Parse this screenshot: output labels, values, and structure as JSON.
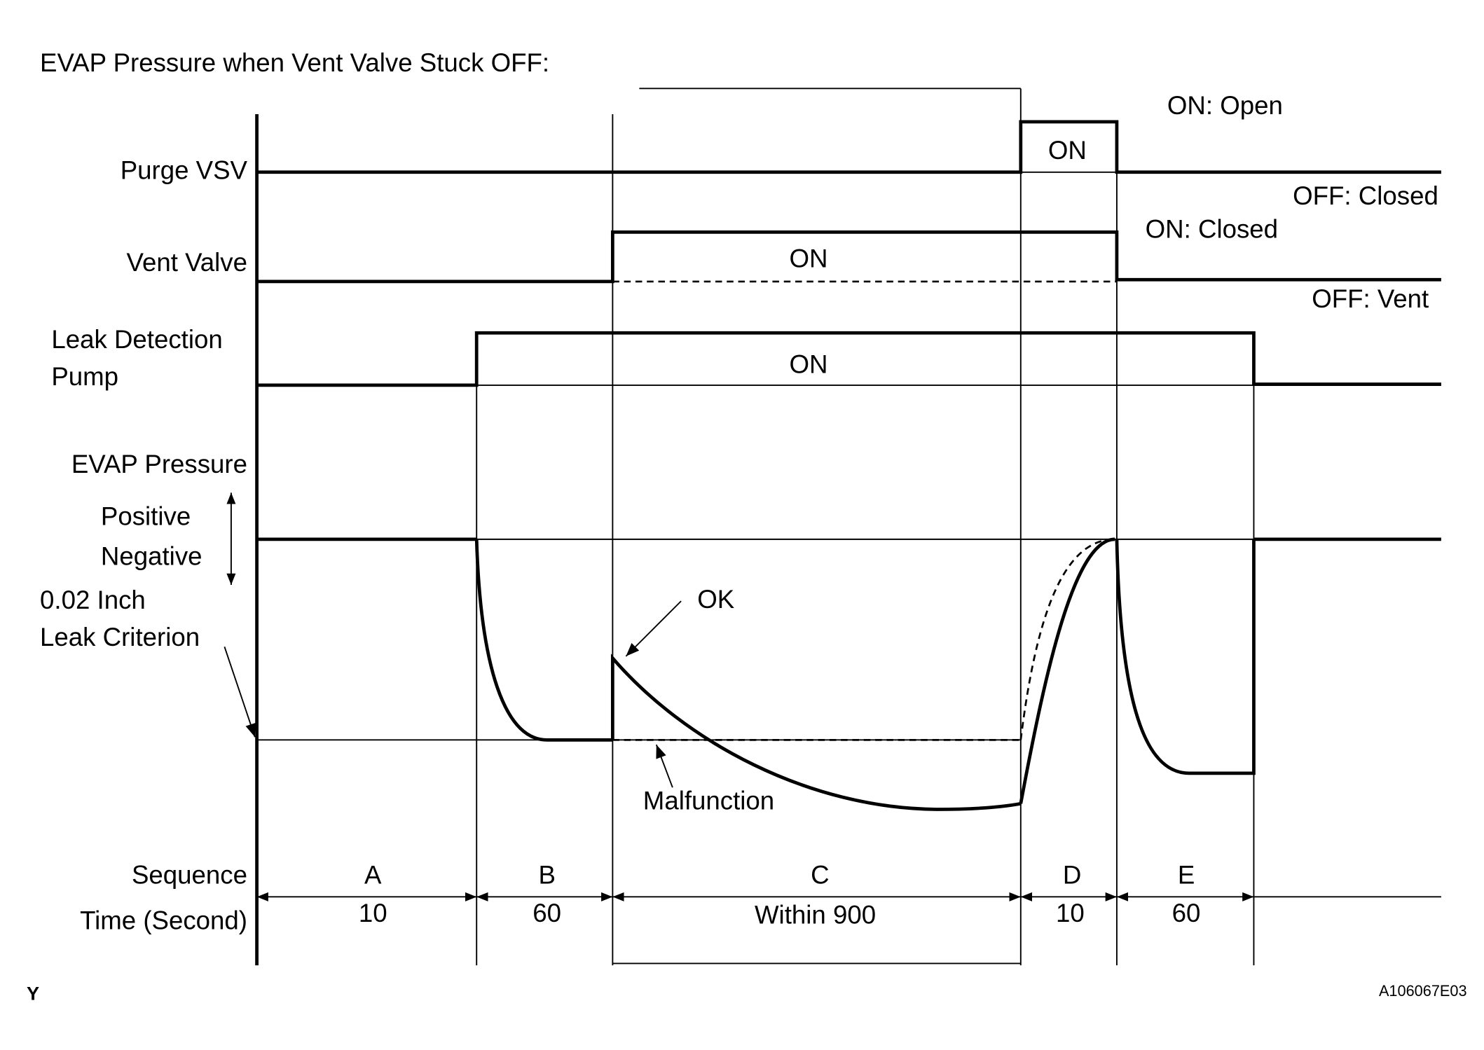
{
  "title": "EVAP Pressure when Vent Valve Stuck OFF:",
  "signals": [
    {
      "label_lines": [
        "Purge VSV"
      ],
      "on": "ON",
      "on_state": "ON: Open",
      "off_state": "OFF: Closed"
    },
    {
      "label_lines": [
        "Vent Valve"
      ],
      "on": "ON",
      "on_state": "ON: Closed",
      "off_state": "OFF: Vent"
    },
    {
      "label_lines": [
        "Leak Detection",
        "Pump"
      ],
      "on": "ON"
    }
  ],
  "evap": {
    "label": "EVAP Pressure",
    "positive": "Positive",
    "negative": "Negative",
    "criterion_lines": [
      "0.02 Inch",
      "Leak Criterion"
    ],
    "ok": "OK",
    "malfunction": "Malfunction"
  },
  "sequence": {
    "label": "Sequence",
    "time_label": "Time (Second)",
    "steps": [
      {
        "name": "A",
        "time": "10"
      },
      {
        "name": "B",
        "time": "60"
      },
      {
        "name": "C",
        "time": "Within 900"
      },
      {
        "name": "D",
        "time": "10"
      },
      {
        "name": "E",
        "time": "60"
      }
    ]
  },
  "footer": {
    "left": "Y",
    "right": "A106067E03"
  }
}
